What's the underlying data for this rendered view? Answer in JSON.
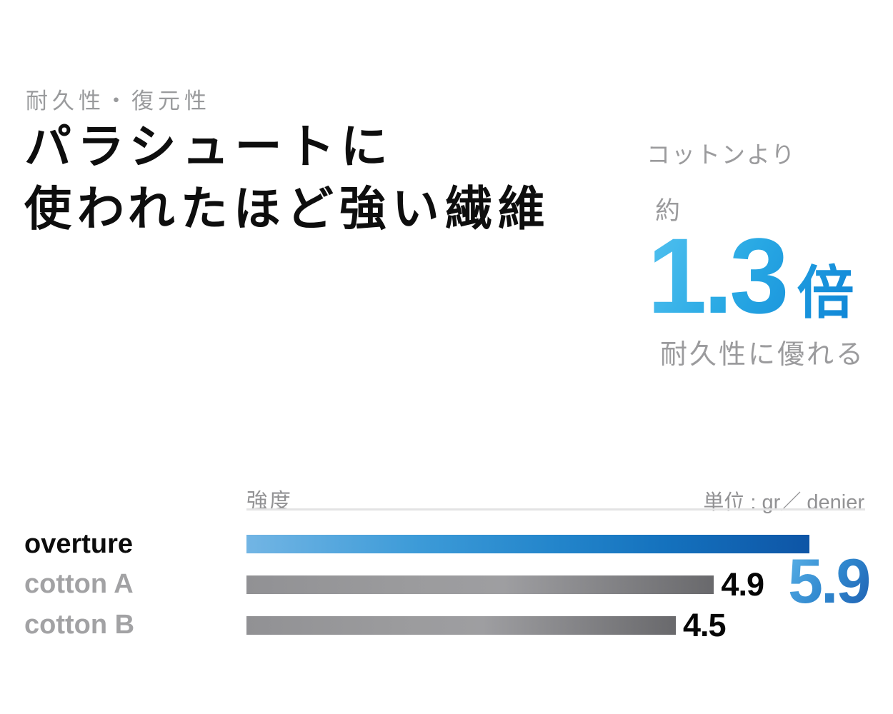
{
  "header": {
    "eyebrow": "耐久性・復元性",
    "title_line1": "パラシュートに",
    "title_line2": "使われたほど強い繊維"
  },
  "highlight": {
    "compare_label": "コットンより",
    "approx_label": "約",
    "multiplier_value": "1.3",
    "multiplier_unit": "倍",
    "benefit_label": "耐久性に優れる"
  },
  "chart_data": {
    "type": "bar",
    "orientation": "horizontal",
    "axis_title": "強度",
    "unit_label": "単位 : gr／ denier",
    "categories": [
      "overture",
      "cotton A",
      "cotton B"
    ],
    "values": [
      5.9,
      4.9,
      4.5
    ],
    "value_labels": [
      "5.9",
      "4.9",
      "4.5"
    ],
    "xlim": [
      0,
      5.9
    ],
    "grid": false,
    "legend_position": "none",
    "highlight_category": "overture",
    "highlight_bar_gradient": [
      "#72b5e4",
      "#2385cb",
      "#0e55a6"
    ],
    "muted_bar_gradient": [
      "#919194",
      "#9e9ea1",
      "#69696c"
    ]
  },
  "colors": {
    "background": "#ffffff",
    "heading_text": "#0e0e0e",
    "muted_text": "#9b9b9d",
    "axis_text": "#929294",
    "divider": "#e3e3e4",
    "value_text": "#060606",
    "accent_blue_light": "#53c2f0",
    "accent_blue": "#1a96dc",
    "accent_blue_dark": "#0e55a6"
  }
}
